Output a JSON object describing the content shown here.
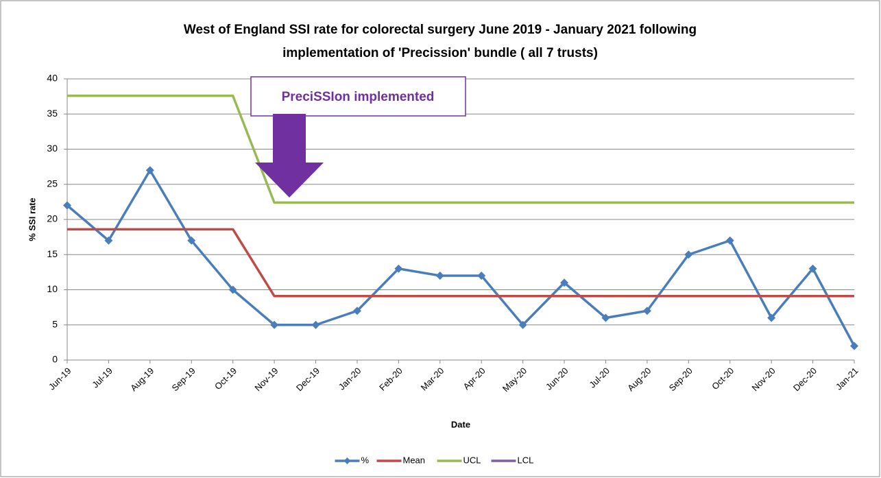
{
  "chart_data": {
    "type": "line",
    "title": [
      "West of England SSI rate for colorectal surgery June 2019 - January 2021 following",
      "implementation of 'Precission' bundle ( all 7 trusts)"
    ],
    "annotation": "PreciSSIon implemented",
    "x_label": "Date",
    "y_label": "% SSI rate",
    "categories": [
      "Jun-19",
      "Jul-19",
      "Aug-19",
      "Sep-19",
      "Oct-19",
      "Nov-19",
      "Dec-19",
      "Jan-20",
      "Feb-20",
      "Mar-20",
      "Apr-20",
      "May-20",
      "Jun-20",
      "Jul-20",
      "Aug-20",
      "Sep-20",
      "Oct-20",
      "Nov-20",
      "Dec-20",
      "Jan-21"
    ],
    "series": [
      {
        "name": "%",
        "color": "#4a7ebb",
        "markers": true,
        "values": [
          22,
          17,
          27,
          17,
          10,
          5,
          5,
          7,
          13,
          12,
          12,
          5,
          11,
          6,
          7,
          15,
          17,
          6,
          13,
          2
        ]
      },
      {
        "name": "Mean",
        "color": "#be4b48",
        "markers": false,
        "values": [
          18.6,
          18.6,
          18.6,
          18.6,
          18.6,
          9.1,
          9.1,
          9.1,
          9.1,
          9.1,
          9.1,
          9.1,
          9.1,
          9.1,
          9.1,
          9.1,
          9.1,
          9.1,
          9.1,
          9.1
        ]
      },
      {
        "name": "UCL",
        "color": "#98b954",
        "markers": false,
        "values": [
          37.6,
          37.6,
          37.6,
          37.6,
          37.6,
          22.4,
          22.4,
          22.4,
          22.4,
          22.4,
          22.4,
          22.4,
          22.4,
          22.4,
          22.4,
          22.4,
          22.4,
          22.4,
          22.4,
          22.4
        ]
      },
      {
        "name": "LCL",
        "color": "#7d60a0",
        "markers": false,
        "values": [
          null,
          null,
          null,
          null,
          null,
          null,
          null,
          null,
          null,
          null,
          null,
          null,
          null,
          null,
          null,
          null,
          null,
          null,
          null,
          null
        ]
      }
    ],
    "ylim": [
      0,
      40
    ],
    "yticks": [
      0,
      5,
      10,
      15,
      20,
      25,
      30,
      35,
      40
    ],
    "grid": true,
    "legend": "bottom"
  }
}
